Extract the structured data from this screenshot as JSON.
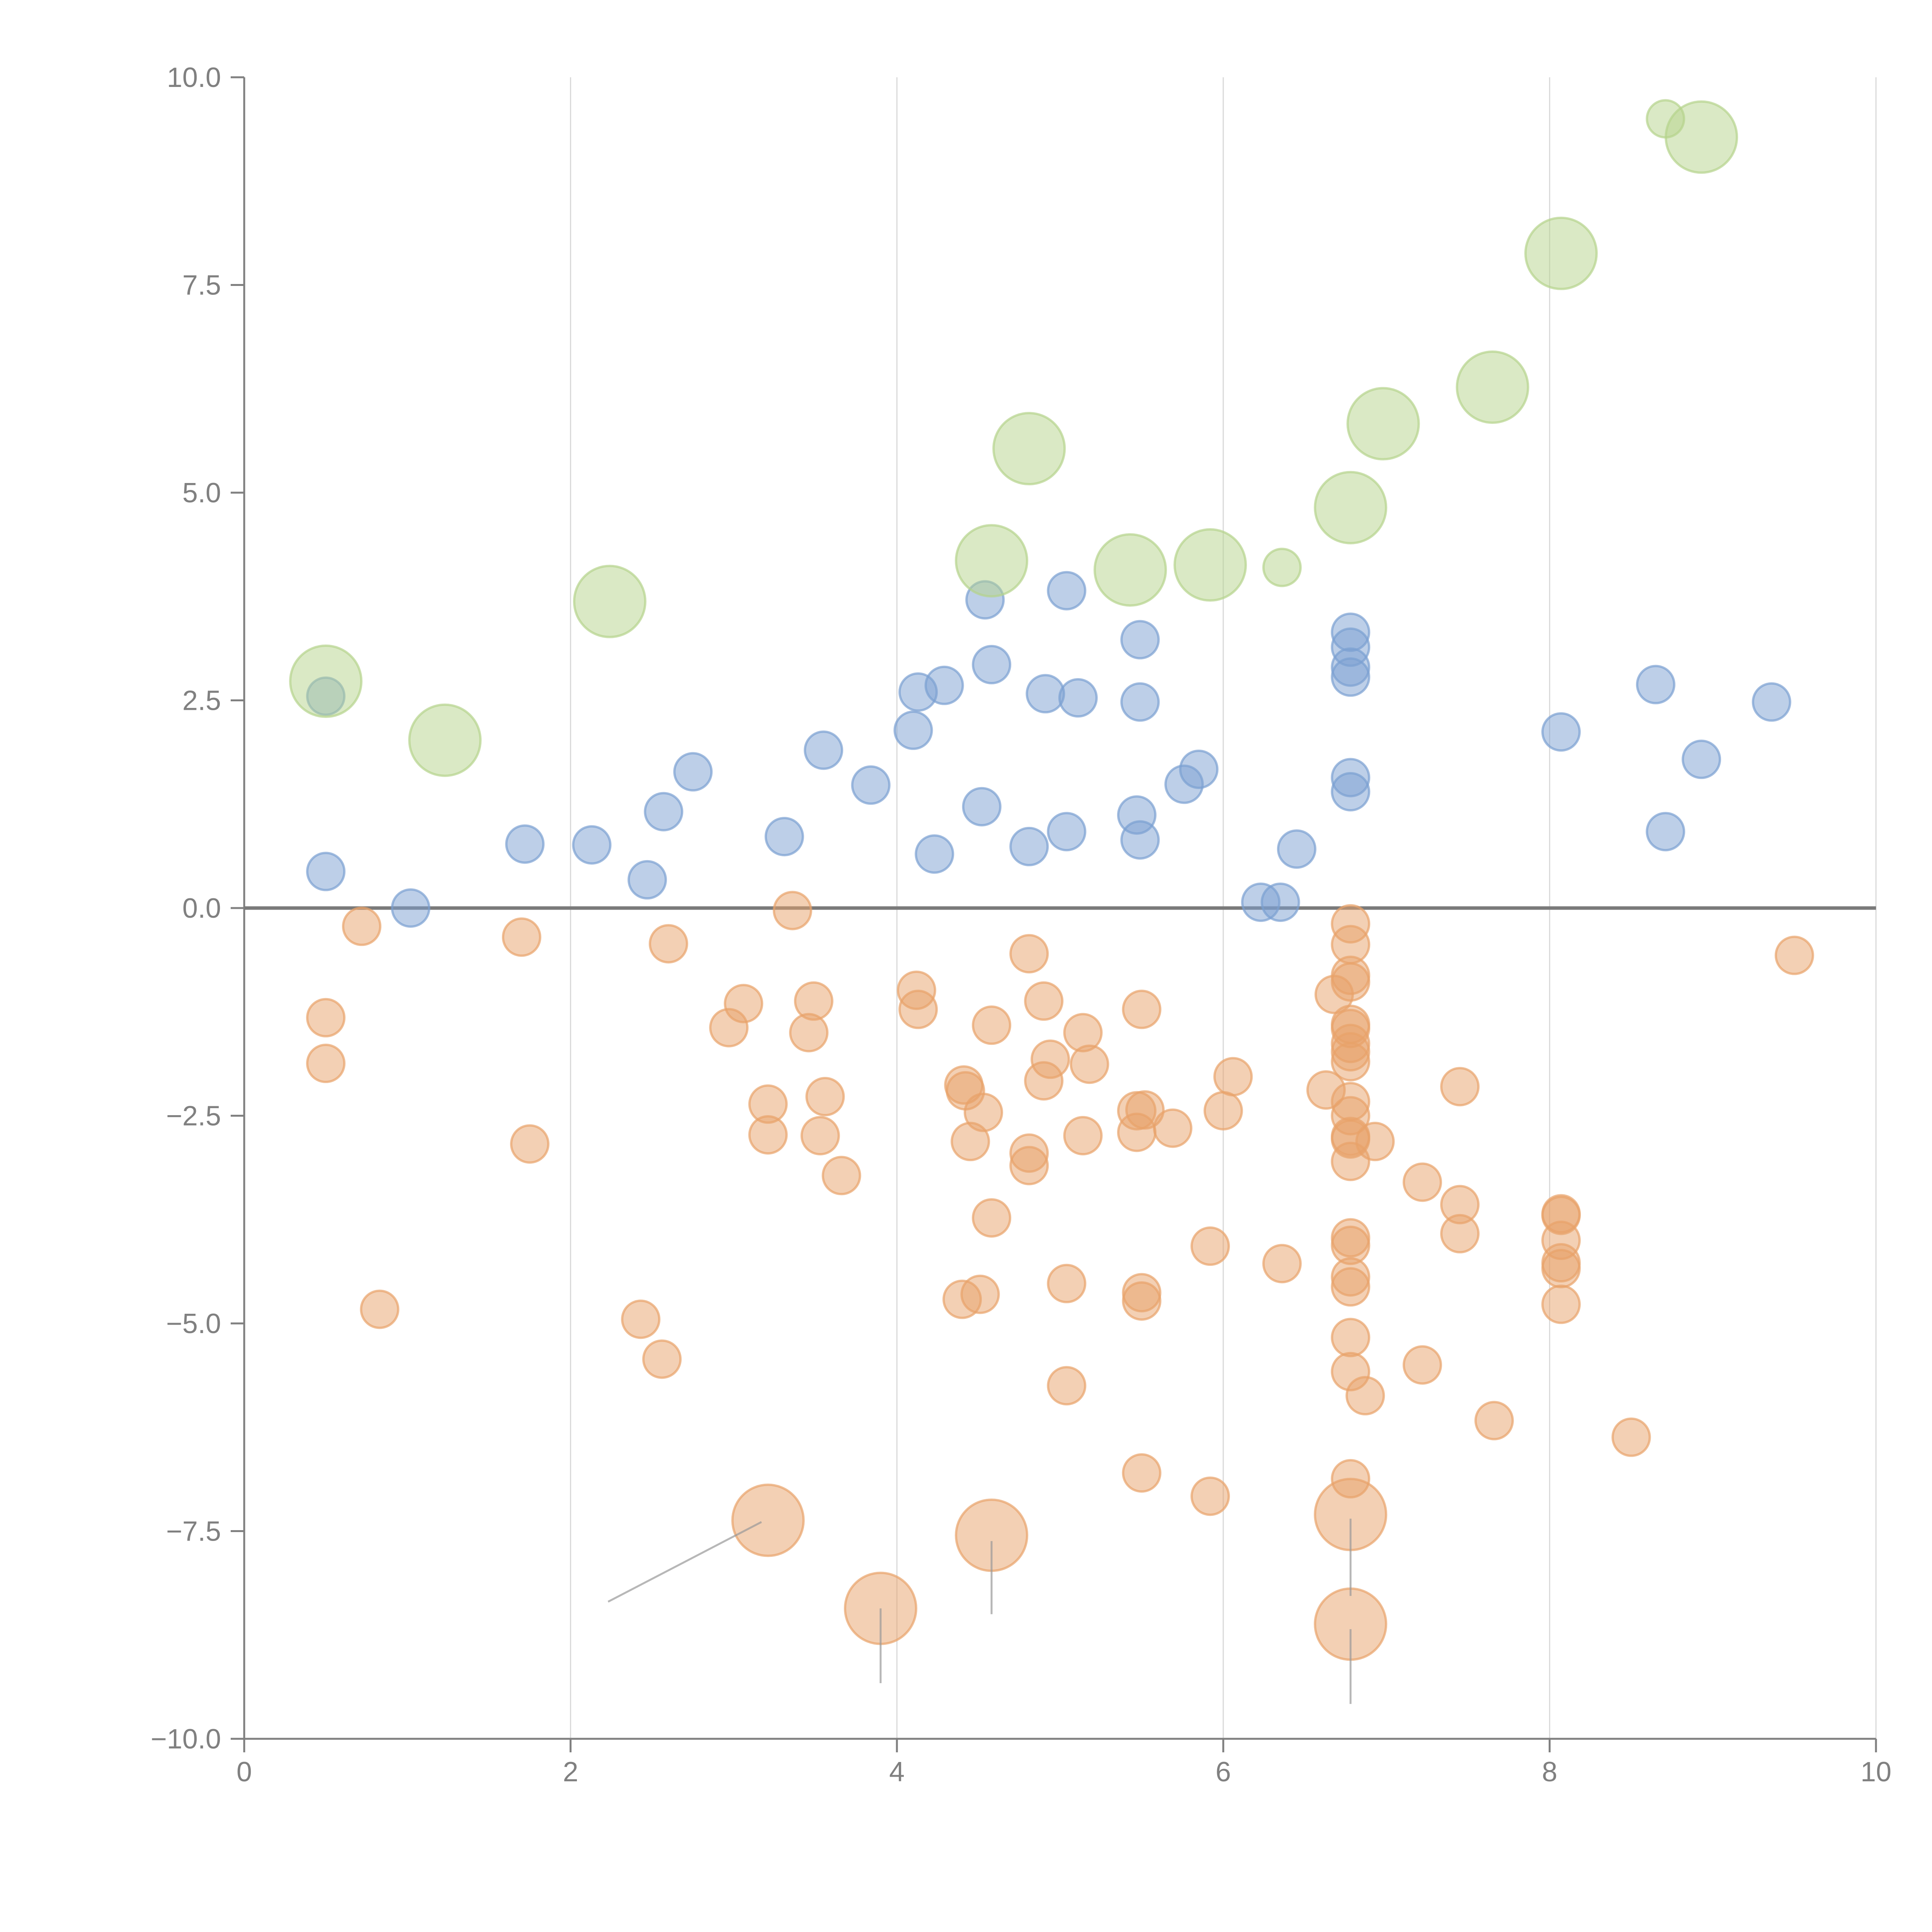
{
  "chart_data": {
    "type": "scatter",
    "title": "",
    "xlabel": "",
    "ylabel": "",
    "xlim": [
      0,
      10
    ],
    "ylim": [
      -10,
      10
    ],
    "grid": "vertical",
    "x_ticks": [
      "0",
      "2",
      "4",
      "6",
      "8",
      "10"
    ],
    "x_tick_values": [
      0,
      2,
      4,
      6,
      8,
      10
    ],
    "y_ticks": [
      "10.0",
      "7.5",
      "5.0",
      "2.5",
      "0.0",
      "−2.5",
      "−5.0",
      "−7.5",
      "−10.0"
    ],
    "y_tick_values": [
      10,
      7.5,
      5,
      2.5,
      0,
      -2.5,
      -5,
      -7.5,
      -10
    ],
    "reference_line_y": 0,
    "series": [
      {
        "name": "positive",
        "color": "#7b9fd2",
        "size": "small",
        "points": [
          [
            0.5,
            2.55
          ],
          [
            0.5,
            0.44
          ],
          [
            1.02,
            0.0
          ],
          [
            1.72,
            0.77
          ],
          [
            2.13,
            0.76
          ],
          [
            2.47,
            0.34
          ],
          [
            2.57,
            1.16
          ],
          [
            2.75,
            1.64
          ],
          [
            3.31,
            0.86
          ],
          [
            3.55,
            1.9
          ],
          [
            3.84,
            1.48
          ],
          [
            4.1,
            2.14
          ],
          [
            4.13,
            2.6
          ],
          [
            4.23,
            0.65
          ],
          [
            4.29,
            2.68
          ],
          [
            4.52,
            1.22
          ],
          [
            4.54,
            3.71
          ],
          [
            4.58,
            2.93
          ],
          [
            4.81,
            0.74
          ],
          [
            4.91,
            2.58
          ],
          [
            5.04,
            3.82
          ],
          [
            5.04,
            0.92
          ],
          [
            5.11,
            2.53
          ],
          [
            5.47,
            1.12
          ],
          [
            5.49,
            3.23
          ],
          [
            5.49,
            2.48
          ],
          [
            5.49,
            0.82
          ],
          [
            5.76,
            1.49
          ],
          [
            5.85,
            1.67
          ],
          [
            6.23,
            0.07
          ],
          [
            6.35,
            0.07
          ],
          [
            6.45,
            0.71
          ],
          [
            6.78,
            3.32
          ],
          [
            6.78,
            3.14
          ],
          [
            6.78,
            2.9
          ],
          [
            6.78,
            2.78
          ],
          [
            6.78,
            1.57
          ],
          [
            6.78,
            1.4
          ],
          [
            8.07,
            2.12
          ],
          [
            8.65,
            2.69
          ],
          [
            8.71,
            0.92
          ],
          [
            8.93,
            1.79
          ],
          [
            9.36,
            2.48
          ]
        ]
      },
      {
        "name": "negative",
        "color": "#e8a26a",
        "size": "small",
        "points": [
          [
            0.5,
            -1.32
          ],
          [
            0.5,
            -1.87
          ],
          [
            0.72,
            -0.22
          ],
          [
            0.83,
            -4.83
          ],
          [
            1.7,
            -0.35
          ],
          [
            1.75,
            -2.84
          ],
          [
            2.43,
            -4.95
          ],
          [
            2.56,
            -5.43
          ],
          [
            2.6,
            -0.43
          ],
          [
            2.97,
            -1.44
          ],
          [
            3.06,
            -1.15
          ],
          [
            3.21,
            -2.36
          ],
          [
            3.21,
            -2.73
          ],
          [
            3.36,
            -0.03
          ],
          [
            3.46,
            -1.5
          ],
          [
            3.49,
            -1.12
          ],
          [
            3.53,
            -2.74
          ],
          [
            3.56,
            -2.27
          ],
          [
            3.66,
            -3.22
          ],
          [
            4.12,
            -0.99
          ],
          [
            4.13,
            -1.22
          ],
          [
            4.4,
            -4.71
          ],
          [
            4.41,
            -2.13
          ],
          [
            4.42,
            -2.2
          ],
          [
            4.45,
            -2.81
          ],
          [
            4.51,
            -4.65
          ],
          [
            4.53,
            -2.46
          ],
          [
            4.58,
            -1.41
          ],
          [
            4.58,
            -3.73
          ],
          [
            4.81,
            -0.55
          ],
          [
            4.81,
            -2.95
          ],
          [
            4.81,
            -3.1
          ],
          [
            4.9,
            -1.12
          ],
          [
            4.9,
            -2.08
          ],
          [
            4.94,
            -1.82
          ],
          [
            5.04,
            -4.52
          ],
          [
            5.04,
            -5.75
          ],
          [
            5.14,
            -1.5
          ],
          [
            5.14,
            -2.74
          ],
          [
            5.18,
            -1.88
          ],
          [
            5.47,
            -2.44
          ],
          [
            5.47,
            -2.7
          ],
          [
            5.5,
            -1.22
          ],
          [
            5.52,
            -2.43
          ],
          [
            5.5,
            -4.63
          ],
          [
            5.5,
            -4.73
          ],
          [
            5.5,
            -6.8
          ],
          [
            5.69,
            -2.65
          ],
          [
            5.92,
            -4.07
          ],
          [
            5.92,
            -7.08
          ],
          [
            6.0,
            -2.44
          ],
          [
            6.06,
            -2.03
          ],
          [
            6.36,
            -4.28
          ],
          [
            6.63,
            -2.19
          ],
          [
            6.68,
            -1.04
          ],
          [
            6.78,
            -0.19
          ],
          [
            6.78,
            -0.44
          ],
          [
            6.78,
            -0.81
          ],
          [
            6.78,
            -0.89
          ],
          [
            6.78,
            -1.4
          ],
          [
            6.78,
            -1.45
          ],
          [
            6.78,
            -1.63
          ],
          [
            6.78,
            -1.73
          ],
          [
            6.78,
            -1.85
          ],
          [
            6.78,
            -2.33
          ],
          [
            6.78,
            -2.5
          ],
          [
            6.78,
            -2.75
          ],
          [
            6.78,
            -2.78
          ],
          [
            6.78,
            -3.05
          ],
          [
            6.78,
            -3.97
          ],
          [
            6.78,
            -4.06
          ],
          [
            6.78,
            -4.44
          ],
          [
            6.78,
            -4.56
          ],
          [
            6.78,
            -5.17
          ],
          [
            6.78,
            -5.58
          ],
          [
            6.78,
            -6.87
          ],
          [
            6.87,
            -5.87
          ],
          [
            6.93,
            -2.81
          ],
          [
            7.22,
            -3.3
          ],
          [
            7.22,
            -5.5
          ],
          [
            7.45,
            -2.15
          ],
          [
            7.45,
            -3.57
          ],
          [
            7.45,
            -3.92
          ],
          [
            7.66,
            -6.17
          ],
          [
            8.07,
            -3.68
          ],
          [
            8.07,
            -3.7
          ],
          [
            8.07,
            -4.0
          ],
          [
            8.07,
            -4.27
          ],
          [
            8.07,
            -4.34
          ],
          [
            8.07,
            -4.77
          ],
          [
            8.5,
            -6.37
          ],
          [
            9.5,
            -0.57
          ]
        ]
      },
      {
        "name": "negative-large",
        "color": "#e8a26a",
        "size": "large",
        "points": [
          [
            3.21,
            -7.37
          ],
          [
            3.9,
            -8.43
          ],
          [
            4.58,
            -7.55
          ],
          [
            6.78,
            -7.3
          ],
          [
            6.78,
            -8.62
          ]
        ]
      },
      {
        "name": "top",
        "color": "#b5d38c",
        "size": "large",
        "points": [
          [
            0.5,
            2.73
          ],
          [
            1.23,
            2.02
          ],
          [
            2.24,
            3.69
          ],
          [
            4.58,
            4.18
          ],
          [
            4.81,
            5.53
          ],
          [
            5.43,
            4.07
          ],
          [
            5.92,
            4.13
          ],
          [
            6.78,
            4.82
          ],
          [
            6.98,
            5.83
          ],
          [
            7.65,
            6.27
          ],
          [
            8.07,
            7.88
          ],
          [
            8.93,
            9.28
          ]
        ]
      },
      {
        "name": "top-small",
        "color": "#b5d38c",
        "size": "small",
        "points": [
          [
            6.36,
            4.1
          ],
          [
            8.71,
            9.5
          ]
        ]
      }
    ],
    "leader_lines": [
      {
        "from": [
          3.17,
          -7.39
        ],
        "to": [
          2.23,
          -8.35
        ]
      },
      {
        "from": [
          3.9,
          -8.43
        ],
        "to": [
          3.9,
          -9.33
        ]
      },
      {
        "from": [
          4.58,
          -7.62
        ],
        "to": [
          4.58,
          -8.5
        ]
      },
      {
        "from": [
          6.78,
          -7.35
        ],
        "to": [
          6.78,
          -8.28
        ]
      },
      {
        "from": [
          6.78,
          -8.68
        ],
        "to": [
          6.78,
          -9.58
        ]
      }
    ]
  }
}
